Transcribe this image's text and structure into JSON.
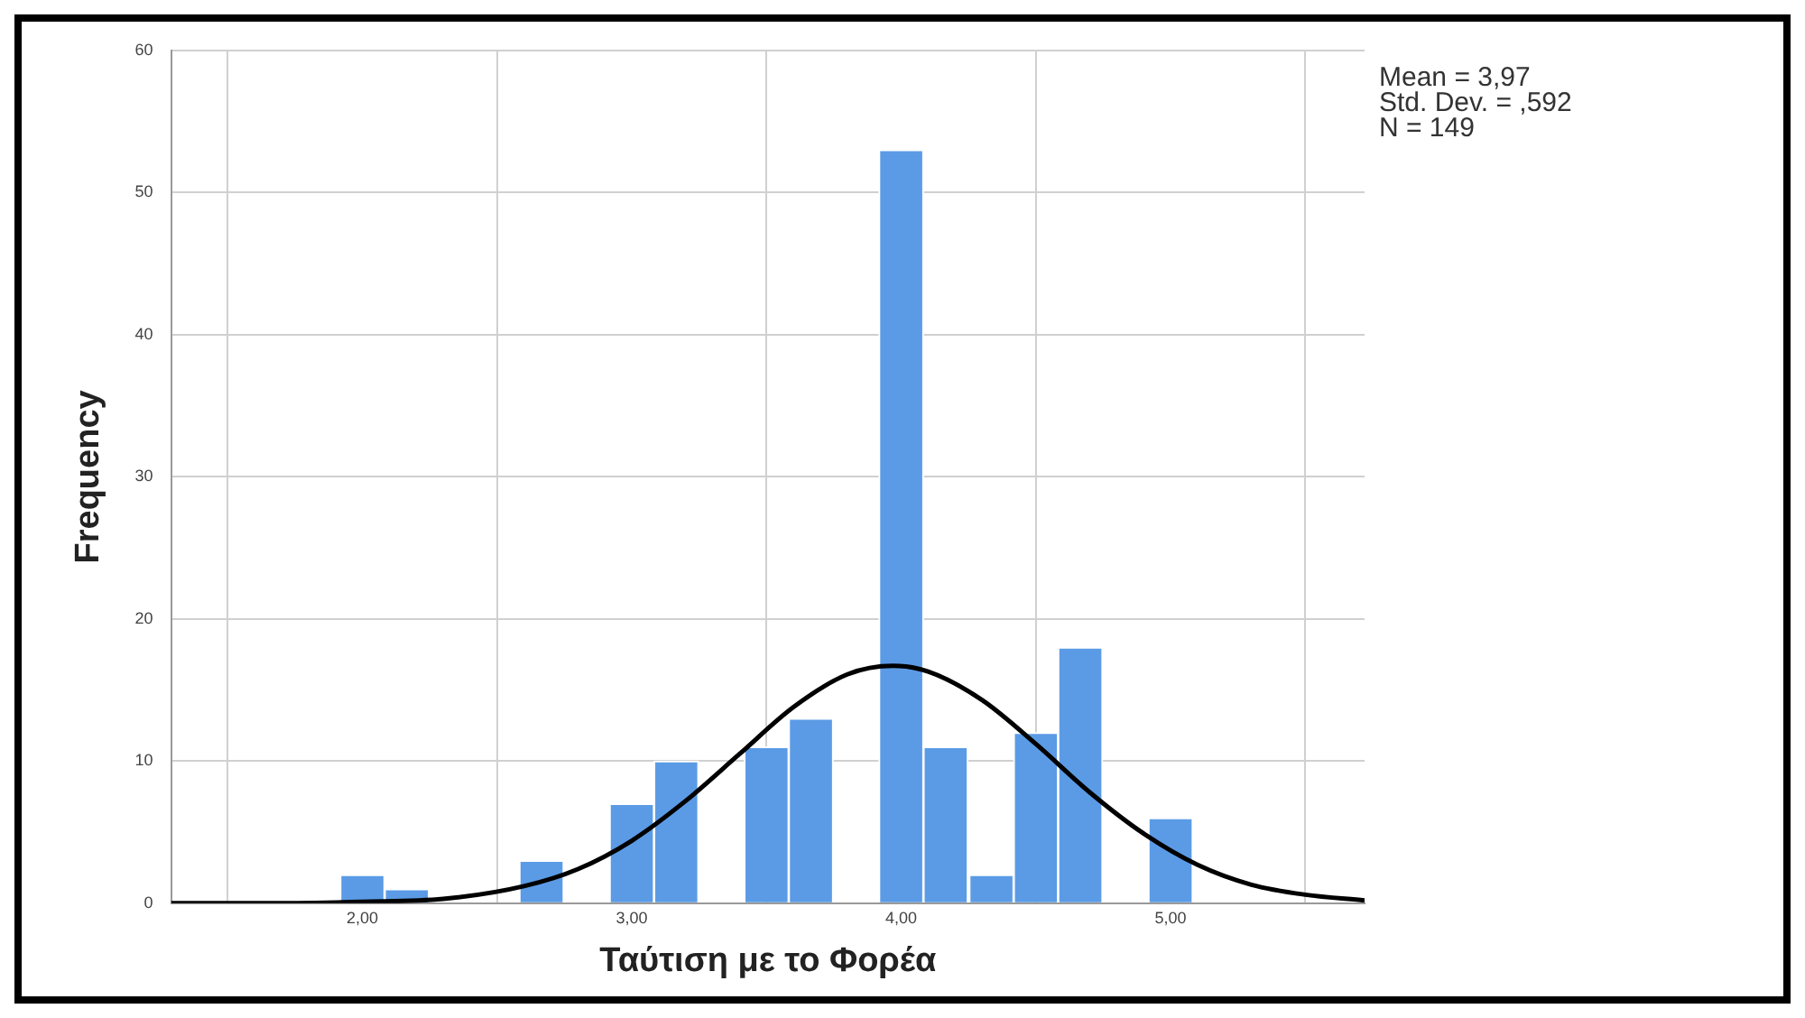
{
  "chart_data": {
    "type": "histogram",
    "xlabel": "Ταύτιση με το Φορέα",
    "ylabel": "Frequency",
    "bins": [
      1.92,
      2.08,
      2.25,
      2.42,
      2.58,
      2.75,
      2.92,
      3.08,
      3.25,
      3.42,
      3.58,
      3.75,
      3.92,
      4.08,
      4.25,
      4.42,
      4.58,
      4.75,
      4.92,
      5.08
    ],
    "series": [
      {
        "color": "#5b9be6",
        "values": [
          2,
          1,
          0,
          0,
          3,
          0,
          7,
          10,
          0,
          11,
          13,
          0,
          53,
          11,
          2,
          12,
          18,
          0,
          6
        ]
      },
      {
        "type": "line",
        "color": "#000000",
        "x": [
          1.29,
          1.7,
          2.0,
          2.3,
          2.6,
          2.8,
          3.0,
          3.2,
          3.4,
          3.6,
          3.8,
          3.97,
          4.1,
          4.3,
          4.5,
          4.7,
          4.9,
          5.1,
          5.3,
          5.5,
          5.72
        ],
        "values": [
          0.0,
          0.0,
          0.1,
          0.3,
          1.2,
          2.4,
          4.4,
          7.2,
          10.5,
          13.8,
          16.1,
          16.7,
          16.3,
          14.3,
          11.2,
          7.8,
          4.9,
          2.7,
          1.3,
          0.6,
          0.2
        ]
      }
    ],
    "xlim": [
      1.29,
      5.72
    ],
    "xticks": [
      {
        "value": 2,
        "label": "2,00"
      },
      {
        "value": 3,
        "label": "3,00"
      },
      {
        "value": 4,
        "label": "4,00"
      },
      {
        "value": 5,
        "label": "5,00"
      }
    ],
    "ylim": [
      0,
      60
    ],
    "yticks": [
      0,
      10,
      20,
      30,
      40,
      50,
      60
    ],
    "grid": true,
    "annotations": [
      "Mean = 3,97",
      "Std. Dev. = ,592",
      "N = 149"
    ]
  }
}
